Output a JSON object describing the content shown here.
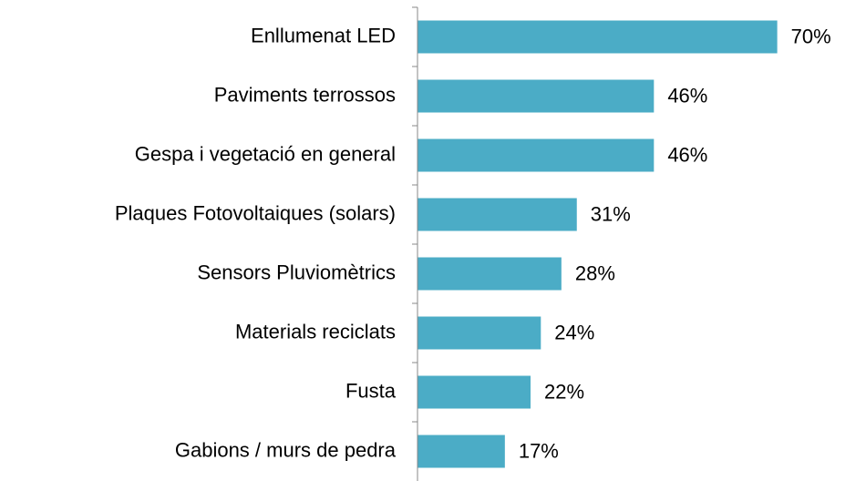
{
  "chart_data": {
    "type": "bar",
    "orientation": "horizontal",
    "categories": [
      "Enllumenat LED",
      "Paviments terrossos",
      "Gespa i vegetació en general",
      "Plaques Fotovoltaiques (solars)",
      "Sensors Pluviomètrics",
      "Materials reciclats",
      "Fusta",
      "Gabions / murs de pedra"
    ],
    "values": [
      70,
      46,
      46,
      31,
      28,
      24,
      22,
      17
    ],
    "value_labels": [
      "70%",
      "46%",
      "46%",
      "31%",
      "28%",
      "24%",
      "22%",
      "17%"
    ],
    "color": "#4bacc6",
    "xlim": [
      0,
      80
    ]
  }
}
